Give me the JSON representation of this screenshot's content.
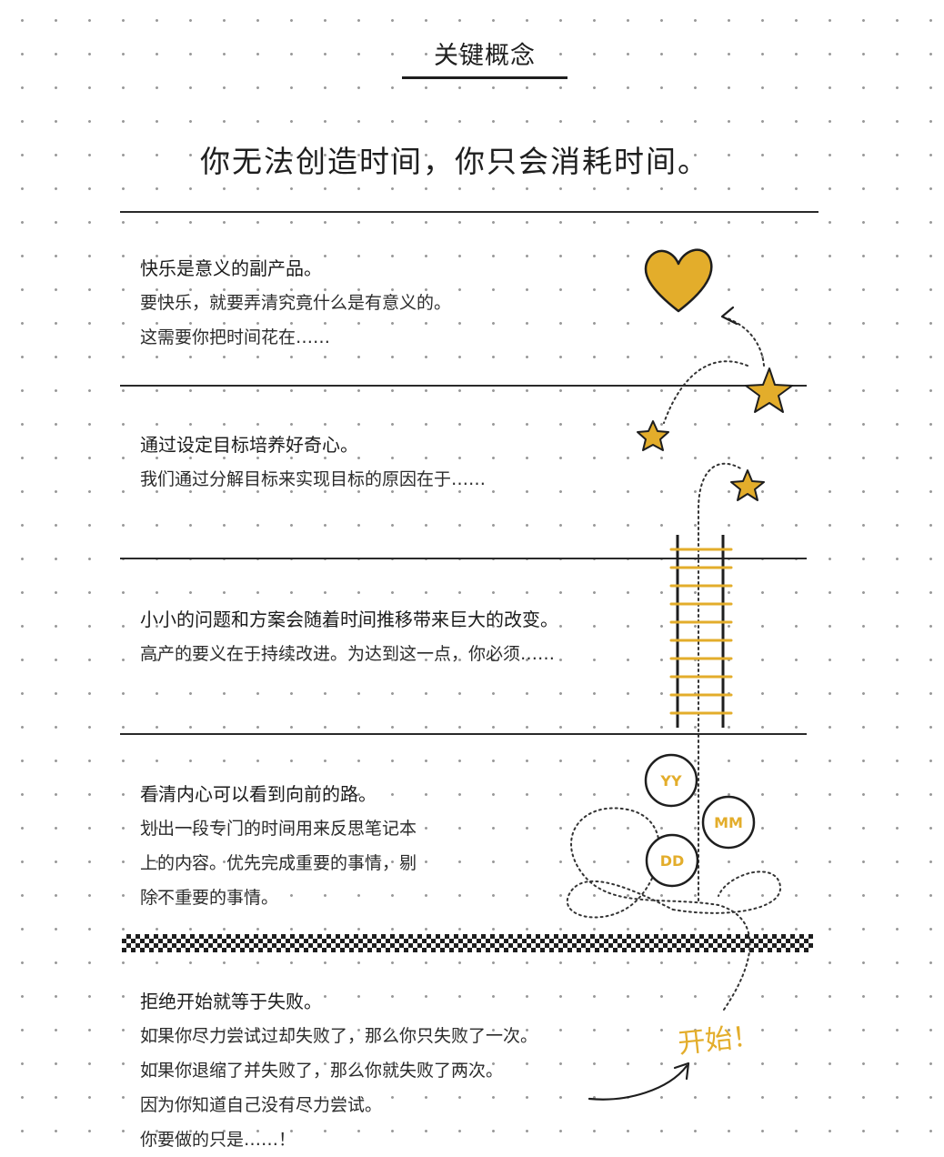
{
  "page": {
    "title": "关键概念",
    "headline": "你无法创造时间，你只会消耗时间。"
  },
  "sections": [
    {
      "heading": "快乐是意义的副产品。",
      "lines": [
        "要快乐，就要弄清究竟什么是有意义的。",
        "这需要你把时间花在……"
      ]
    },
    {
      "heading": "通过设定目标培养好奇心。",
      "lines": [
        "我们通过分解目标来实现目标的原因在于……"
      ]
    },
    {
      "heading": "小小的问题和方案会随着时间推移带来巨大的改变。",
      "lines": [
        "高产的要义在于持续改进。为达到这一点，你必须……"
      ]
    },
    {
      "heading": "看清内心可以看到向前的路。",
      "lines": [
        "划出一段专门的时间用来反思笔记本",
        "上的内容。优先完成重要的事情，剔",
        "除不重要的事情。"
      ]
    },
    {
      "heading": "拒绝开始就等于失败。",
      "lines": [
        "如果你尽力尝试过却失败了，那么你只失败了一次。",
        "如果你退缩了并失败了，那么你就失败了两次。",
        "因为你知道自己没有尽力尝试。",
        "你要做的只是……！"
      ]
    }
  ],
  "illustration": {
    "start_label": "开始！",
    "badges": [
      "YY",
      "MM",
      "DD"
    ],
    "icons": [
      "heart-icon",
      "star-icon",
      "ladder-icon",
      "arrow-icon"
    ],
    "colors": {
      "accent": "#e3ad2b",
      "ink": "#1e1e1e"
    }
  }
}
